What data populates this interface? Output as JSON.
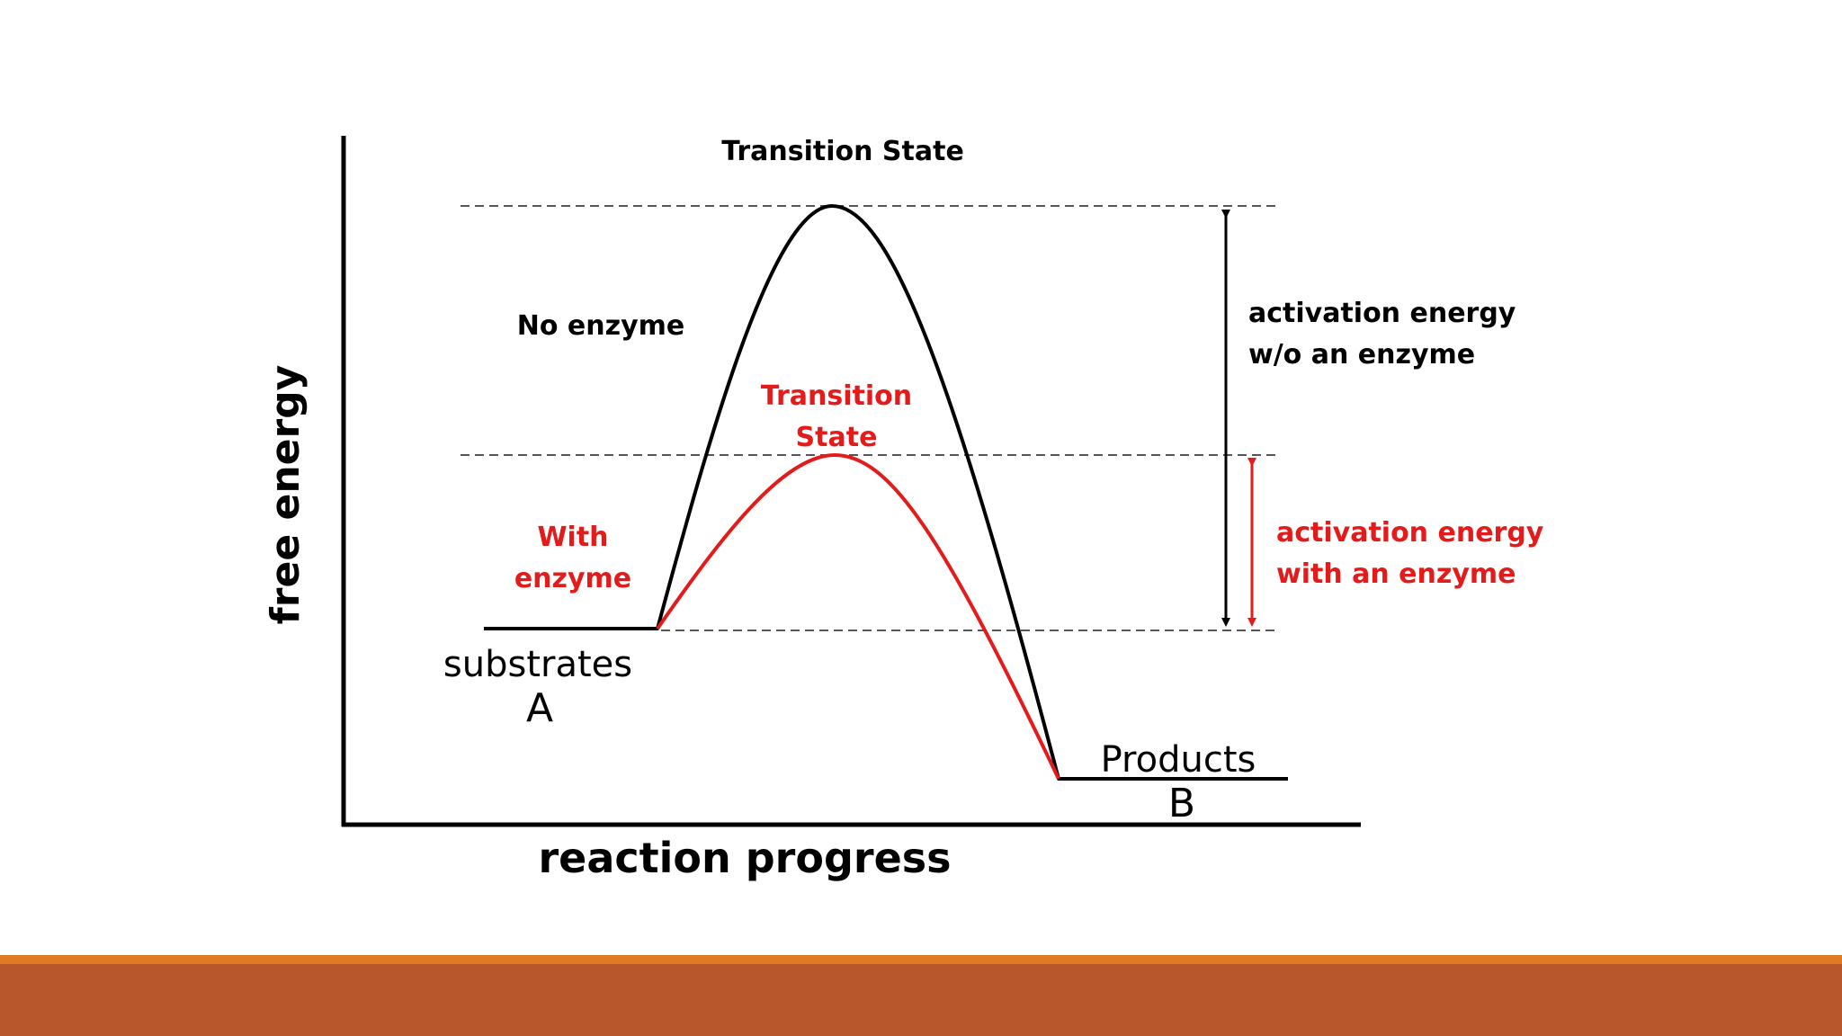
{
  "diagram": {
    "labels": {
      "ts_no_enzyme": "Transition State",
      "no_enzyme": "No enzyme",
      "ts_with_enzyme_line1": "Transition",
      "ts_with_enzyme_line2": "State",
      "with_enzyme_line1": "With",
      "with_enzyme_line2": "enzyme",
      "ea_without_line1": "activation energy",
      "ea_without_line2": "w/o an enzyme",
      "ea_with_line1": "activation energy",
      "ea_with_line2": "with an enzyme",
      "substrates": "substrates",
      "substrate_letter": "A",
      "products": "Products",
      "product_letter": "B",
      "x_axis": "reaction progress",
      "y_axis": "free energy"
    },
    "colors": {
      "uncatalyzed": "#000000",
      "catalyzed": "#e31b1b",
      "dashed_guides": "#555555",
      "footer_stripe": "#e07b24",
      "footer_bar": "#b8562c"
    }
  }
}
